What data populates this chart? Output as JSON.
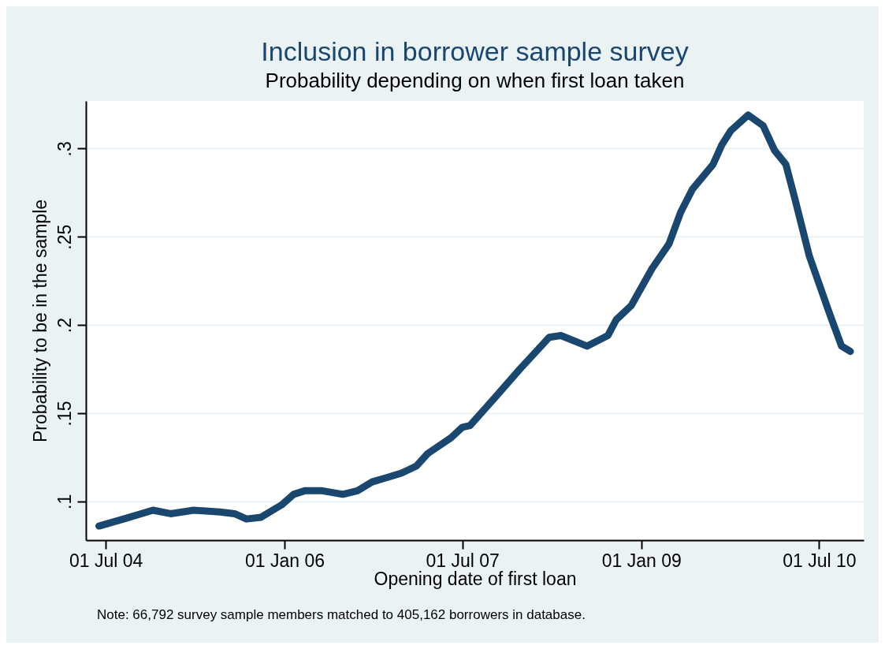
{
  "chart_data": {
    "type": "line",
    "title": "Inclusion in borrower sample survey",
    "subtitle": "Probability depending on when first loan taken",
    "xlabel": "Opening date of first loan",
    "ylabel": "Probability to be in the sample",
    "x": [
      "2004-06-10",
      "2004-08-25",
      "2004-11-23",
      "2005-01-16",
      "2005-03-28",
      "2005-06-17",
      "2005-08-01",
      "2005-09-06",
      "2005-10-21",
      "2005-12-23",
      "2006-01-29",
      "2006-03-04",
      "2006-04-27",
      "2006-06-29",
      "2006-08-13",
      "2006-09-27",
      "2006-11-02",
      "2006-12-26",
      "2007-02-10",
      "2007-03-16",
      "2007-05-27",
      "2007-07-01",
      "2007-07-25",
      "2007-10-15",
      "2007-12-25",
      "2008-03-24",
      "2008-04-29",
      "2008-07-18",
      "2008-09-20",
      "2008-10-16",
      "2008-12-01",
      "2009-02-03",
      "2009-03-27",
      "2009-05-02",
      "2009-06-07",
      "2009-08-09",
      "2009-09-05",
      "2009-10-02",
      "2009-11-25",
      "2010-01-10",
      "2010-02-14",
      "2010-03-21",
      "2010-04-17",
      "2010-06-01",
      "2010-08-03",
      "2010-09-08",
      "2010-10-05"
    ],
    "series": [
      {
        "color": "#1a476f",
        "values": [
          0.086,
          0.09,
          0.095,
          0.093,
          0.095,
          0.094,
          0.093,
          0.09,
          0.091,
          0.098,
          0.104,
          0.106,
          0.106,
          0.104,
          0.106,
          0.111,
          0.113,
          0.116,
          0.12,
          0.127,
          0.136,
          0.142,
          0.143,
          0.16,
          0.175,
          0.193,
          0.194,
          0.188,
          0.194,
          0.203,
          0.211,
          0.232,
          0.246,
          0.264,
          0.277,
          0.291,
          0.302,
          0.31,
          0.319,
          0.313,
          0.299,
          0.291,
          0.272,
          0.239,
          0.206,
          0.188,
          0.185
        ]
      }
    ],
    "xlim": [
      "2004-05-01",
      "2010-11-15"
    ],
    "xticks": [
      {
        "value": "2004-07-01",
        "label": "01 Jul 04"
      },
      {
        "value": "2006-01-01",
        "label": "01 Jan 06"
      },
      {
        "value": "2007-07-01",
        "label": "01 Jul 07"
      },
      {
        "value": "2009-01-01",
        "label": "01 Jan 09"
      },
      {
        "value": "2010-07-01",
        "label": "01 Jul 10"
      }
    ],
    "ylim": [
      0.078,
      0.327
    ],
    "yticks": [
      {
        "value": 0.1,
        "label": ".1"
      },
      {
        "value": 0.15,
        "label": ".15"
      },
      {
        "value": 0.2,
        "label": ".2"
      },
      {
        "value": 0.25,
        "label": ".25"
      },
      {
        "value": 0.3,
        "label": ".3"
      }
    ],
    "grid": "y",
    "line_style": "solid",
    "annotations": [
      "Note: 66,792 survey sample members matched to 405,162 borrowers in database."
    ]
  }
}
